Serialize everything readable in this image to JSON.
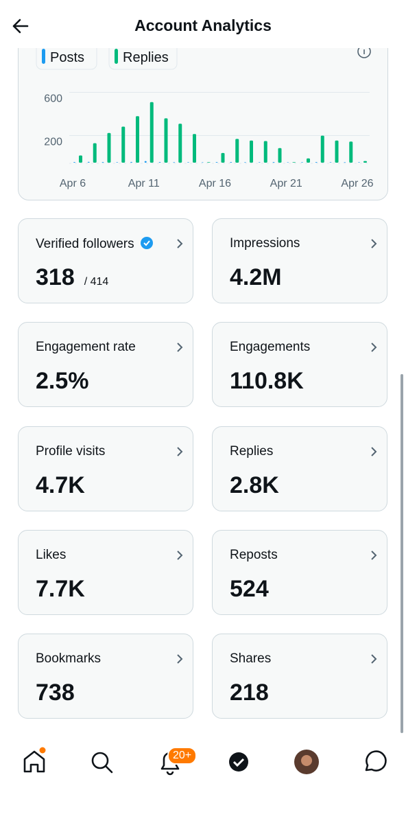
{
  "header": {
    "title": "Account Analytics"
  },
  "chart_data": {
    "type": "bar",
    "categories": [
      "Apr 6",
      null,
      null,
      null,
      null,
      "Apr 11",
      null,
      null,
      null,
      null,
      "Apr 16",
      null,
      null,
      null,
      null,
      "Apr 21",
      null,
      null,
      null,
      null,
      "Apr 26"
    ],
    "series": [
      {
        "name": "Posts",
        "color": "#1d9bf0",
        "values": [
          6,
          8,
          6,
          5,
          7,
          15,
          6,
          5,
          5,
          4,
          6,
          6,
          5,
          5,
          6,
          4,
          5,
          6,
          5,
          5,
          5
        ]
      },
      {
        "name": "Replies",
        "color": "#00ba7c",
        "values": [
          67,
          180,
          275,
          333,
          430,
          560,
          410,
          360,
          265,
          5,
          90,
          220,
          205,
          200,
          135,
          5,
          40,
          250,
          205,
          195,
          15
        ]
      }
    ],
    "ylim": [
      0,
      650
    ],
    "yticks": [
      200,
      600
    ],
    "grid": true
  },
  "cards": [
    {
      "label": "Verified followers",
      "value": "318",
      "sub": "/ 414"
    },
    {
      "label": "Impressions",
      "value": "4.2M"
    },
    {
      "label": "Engagement rate",
      "value": "2.5%"
    },
    {
      "label": "Engagements",
      "value": "110.8K"
    },
    {
      "label": "Profile visits",
      "value": "4.7K"
    },
    {
      "label": "Replies",
      "value": "2.8K"
    },
    {
      "label": "Likes",
      "value": "7.7K"
    },
    {
      "label": "Reposts",
      "value": "524"
    },
    {
      "label": "Bookmarks",
      "value": "738"
    },
    {
      "label": "Shares",
      "value": "218"
    }
  ],
  "nav": {
    "badge": "20+"
  }
}
